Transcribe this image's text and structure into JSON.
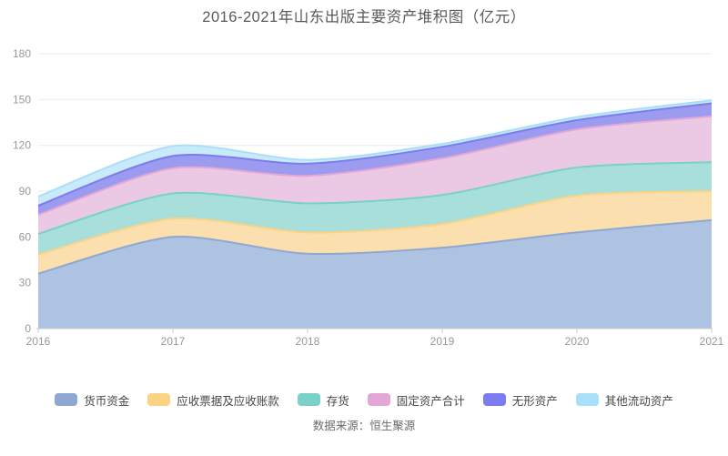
{
  "chart_data": {
    "type": "area",
    "stacked": true,
    "smooth": true,
    "title": "2016-2021年山东出版主要资产堆积图（亿元）",
    "source_note": "数据来源：恒生聚源",
    "categories": [
      "2016",
      "2017",
      "2018",
      "2019",
      "2020",
      "2021"
    ],
    "series": [
      {
        "name": "货币资金",
        "color": "#8FA8D2",
        "area_color": "#AEC3E2",
        "values": [
          36,
          60,
          49,
          53,
          63,
          71
        ]
      },
      {
        "name": "应收票据及应收账款",
        "color": "#FAD384",
        "area_color": "#FBDFAE",
        "values": [
          12.5,
          12,
          14,
          15.5,
          24,
          19
        ]
      },
      {
        "name": "存货",
        "color": "#79D1CA",
        "area_color": "#A8DFDB",
        "values": [
          13.5,
          16.5,
          19,
          19,
          18.5,
          19
        ]
      },
      {
        "name": "固定资产合计",
        "color": "#E3A6D7",
        "area_color": "#EBC9E4",
        "values": [
          12.5,
          16.5,
          18,
          24,
          25,
          30
        ]
      },
      {
        "name": "无形资产",
        "color": "#7C7CF0",
        "area_color": "#9B9BF0",
        "values": [
          6,
          8,
          8,
          7.5,
          6,
          8.5
        ]
      },
      {
        "name": "其他流动资产",
        "color": "#A9DFF8",
        "area_color": "#C9EAFB",
        "values": [
          6,
          6.5,
          2.5,
          2,
          2,
          2
        ]
      }
    ],
    "ylim": [
      0,
      180
    ],
    "y_ticks": [
      0,
      30,
      60,
      90,
      120,
      150,
      180
    ],
    "grid": true,
    "legend_position": "bottom",
    "axis_colors": {
      "axis_line": "#cccccc",
      "grid_line": "#e9ebf3",
      "tick_label": "#999999"
    }
  }
}
